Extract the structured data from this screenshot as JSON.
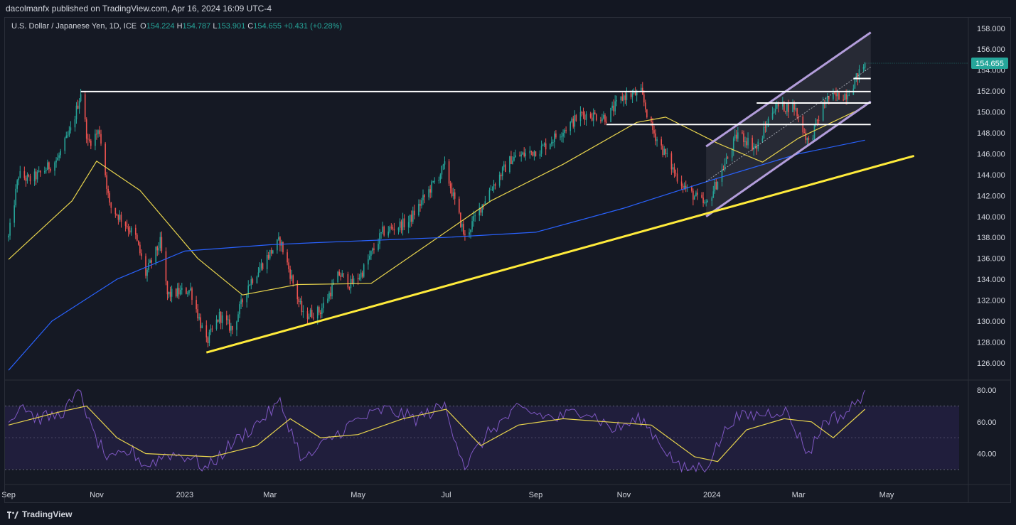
{
  "header": {
    "publisher_text": "dacolmanfx published on TradingView.com, Apr 16, 2024 16:09 UTC-4"
  },
  "legend": {
    "symbol": "U.S. Dollar / Japanese Yen, 1D, ICE",
    "open_label": "O",
    "open": "154.224",
    "high_label": "H",
    "high": "154.787",
    "low_label": "L",
    "low": "153.901",
    "close_label": "C",
    "close": "154.655",
    "change": "+0.431 (+0.28%)"
  },
  "footer": {
    "brand": "TradingView"
  },
  "colors": {
    "up": "#26a69a",
    "down": "#ef5350",
    "ma50": "#e8d44d",
    "ma200": "#2962ff",
    "rsi": "#7e57c2",
    "rsi_ma": "#e8d44d",
    "trendline": "#ffeb3b",
    "channel": "#b39ddb",
    "level": "#ffffff"
  },
  "chart_data": [
    {
      "type": "candlestick",
      "price_axis_ticks": [
        "158.000",
        "156.000",
        "154.000",
        "152.000",
        "150.000",
        "148.000",
        "146.000",
        "144.000",
        "142.000",
        "140.000",
        "138.000",
        "136.000",
        "134.000",
        "132.000",
        "130.000",
        "128.000",
        "126.000"
      ],
      "last_price_label": "154.655",
      "ylim": [
        124.5,
        158.8
      ],
      "time_axis_labels": [
        "Sep",
        "Nov",
        "2023",
        "Mar",
        "May",
        "Jul",
        "Sep",
        "Nov",
        "2024",
        "Mar",
        "May"
      ],
      "price_path": [
        [
          "2022-09-01",
          138.0
        ],
        [
          "2022-09-08",
          144.0
        ],
        [
          "2022-09-15",
          143.5
        ],
        [
          "2022-09-22",
          144.0
        ],
        [
          "2022-10-05",
          145.5
        ],
        [
          "2022-10-15",
          148.5
        ],
        [
          "2022-10-21",
          151.9
        ],
        [
          "2022-10-26",
          147.0
        ],
        [
          "2022-11-03",
          148.2
        ],
        [
          "2022-11-10",
          141.0
        ],
        [
          "2022-11-20",
          139.5
        ],
        [
          "2022-11-28",
          138.0
        ],
        [
          "2022-12-05",
          134.5
        ],
        [
          "2022-12-15",
          137.5
        ],
        [
          "2022-12-20",
          132.5
        ],
        [
          "2023-01-05",
          133.0
        ],
        [
          "2023-01-16",
          127.9
        ],
        [
          "2023-01-25",
          130.5
        ],
        [
          "2023-02-03",
          129.2
        ],
        [
          "2023-02-14",
          133.5
        ],
        [
          "2023-03-01",
          136.5
        ],
        [
          "2023-03-08",
          137.7
        ],
        [
          "2023-03-24",
          130.5
        ],
        [
          "2023-04-05",
          131.0
        ],
        [
          "2023-04-18",
          134.5
        ],
        [
          "2023-04-26",
          133.5
        ],
        [
          "2023-05-03",
          134.5
        ],
        [
          "2023-05-18",
          138.5
        ],
        [
          "2023-06-05",
          139.5
        ],
        [
          "2023-06-30",
          144.8
        ],
        [
          "2023-07-14",
          138.0
        ],
        [
          "2023-07-31",
          142.5
        ],
        [
          "2023-08-15",
          145.5
        ],
        [
          "2023-09-05",
          146.5
        ],
        [
          "2023-10-03",
          149.8
        ],
        [
          "2023-10-20",
          149.5
        ],
        [
          "2023-11-01",
          151.5
        ],
        [
          "2023-11-13",
          151.8
        ],
        [
          "2023-11-20",
          148.5
        ],
        [
          "2023-12-07",
          144.0
        ],
        [
          "2023-12-15",
          142.5
        ],
        [
          "2023-12-28",
          141.0
        ],
        [
          "2024-01-10",
          145.0
        ],
        [
          "2024-01-19",
          148.0
        ],
        [
          "2024-02-01",
          146.5
        ],
        [
          "2024-02-13",
          150.5
        ],
        [
          "2024-02-27",
          150.5
        ],
        [
          "2024-03-08",
          147.0
        ],
        [
          "2024-03-20",
          151.2
        ],
        [
          "2024-04-03",
          151.7
        ],
        [
          "2024-04-10",
          153.2
        ],
        [
          "2024-04-16",
          154.655
        ]
      ],
      "moving_averages": [
        {
          "label": "50-day",
          "color": "#e8d44d",
          "points": [
            [
              "2022-09-01",
              135.9
            ],
            [
              "2022-10-15",
              141.5
            ],
            [
              "2022-11-01",
              145.3
            ],
            [
              "2022-12-01",
              142.5
            ],
            [
              "2023-01-10",
              136.0
            ],
            [
              "2023-02-10",
              132.5
            ],
            [
              "2023-03-20",
              133.5
            ],
            [
              "2023-05-10",
              133.6
            ],
            [
              "2023-06-20",
              137.5
            ],
            [
              "2023-08-01",
              141.5
            ],
            [
              "2023-09-20",
              145.0
            ],
            [
              "2023-11-10",
              149.0
            ],
            [
              "2023-11-30",
              149.5
            ],
            [
              "2024-01-05",
              147.0
            ],
            [
              "2024-02-05",
              145.2
            ],
            [
              "2024-03-01",
              147.5
            ],
            [
              "2024-04-16",
              150.5
            ]
          ]
        },
        {
          "label": "200-day",
          "color": "#2962ff",
          "points": [
            [
              "2022-09-01",
              125.3
            ],
            [
              "2022-10-01",
              130.0
            ],
            [
              "2022-11-15",
              134.0
            ],
            [
              "2023-01-01",
              136.7
            ],
            [
              "2023-03-01",
              137.3
            ],
            [
              "2023-04-01",
              137.5
            ],
            [
              "2023-07-01",
              138.0
            ],
            [
              "2023-09-01",
              138.5
            ],
            [
              "2023-11-01",
              140.8
            ],
            [
              "2024-01-01",
              143.5
            ],
            [
              "2024-03-01",
              146.0
            ],
            [
              "2024-04-16",
              147.3
            ]
          ]
        }
      ],
      "horizontal_levels": [
        {
          "price": 151.95,
          "from": "2022-10-21",
          "to": "2024-04-20"
        },
        {
          "price": 153.2,
          "from": "2024-04-08",
          "to": "2024-04-20"
        },
        {
          "price": 150.85,
          "from": "2024-02-01",
          "to": "2024-04-20"
        },
        {
          "price": 148.8,
          "from": "2023-10-20",
          "to": "2024-04-20"
        }
      ],
      "trendline": {
        "from": [
          "2023-01-16",
          127.0
        ],
        "to": [
          "2024-05-20",
          145.8
        ]
      },
      "channel": {
        "upper": [
          [
            "2023-12-28",
            146.7
          ],
          [
            "2024-04-20",
            157.6
          ]
        ],
        "lower": [
          [
            "2023-12-28",
            140.0
          ],
          [
            "2024-04-20",
            151.0
          ]
        ]
      }
    },
    {
      "type": "line",
      "indicator": "RSI",
      "ticks": [
        "80.00",
        "60.00",
        "40.00"
      ],
      "ylim": [
        25,
        85
      ],
      "band": [
        30,
        70
      ],
      "rsi_path": [
        [
          "2022-09-01",
          60
        ],
        [
          "2022-09-10",
          72
        ],
        [
          "2022-09-20",
          62
        ],
        [
          "2022-10-05",
          64
        ],
        [
          "2022-10-15",
          72
        ],
        [
          "2022-10-21",
          80
        ],
        [
          "2022-10-28",
          55
        ],
        [
          "2022-11-10",
          35
        ],
        [
          "2022-11-25",
          42
        ],
        [
          "2022-12-05",
          32
        ],
        [
          "2022-12-20",
          40
        ],
        [
          "2023-01-05",
          38
        ],
        [
          "2023-01-16",
          30
        ],
        [
          "2023-02-01",
          45
        ],
        [
          "2023-02-15",
          55
        ],
        [
          "2023-03-08",
          72
        ],
        [
          "2023-03-24",
          35
        ],
        [
          "2023-04-10",
          48
        ],
        [
          "2023-04-28",
          60
        ],
        [
          "2023-05-20",
          68
        ],
        [
          "2023-06-10",
          62
        ],
        [
          "2023-06-30",
          70
        ],
        [
          "2023-07-14",
          32
        ],
        [
          "2023-08-01",
          55
        ],
        [
          "2023-08-20",
          68
        ],
        [
          "2023-09-15",
          62
        ],
        [
          "2023-10-05",
          68
        ],
        [
          "2023-10-25",
          55
        ],
        [
          "2023-11-13",
          62
        ],
        [
          "2023-11-28",
          45
        ],
        [
          "2023-12-10",
          30
        ],
        [
          "2023-12-28",
          32
        ],
        [
          "2024-01-15",
          62
        ],
        [
          "2024-02-05",
          65
        ],
        [
          "2024-02-20",
          68
        ],
        [
          "2024-03-08",
          40
        ],
        [
          "2024-03-20",
          62
        ],
        [
          "2024-04-01",
          64
        ],
        [
          "2024-04-10",
          72
        ],
        [
          "2024-04-16",
          80
        ]
      ],
      "rsi_ma_path": [
        [
          "2022-09-01",
          58
        ],
        [
          "2022-10-05",
          66
        ],
        [
          "2022-10-25",
          70
        ],
        [
          "2022-11-15",
          50
        ],
        [
          "2022-12-05",
          40
        ],
        [
          "2023-01-20",
          38
        ],
        [
          "2023-02-20",
          45
        ],
        [
          "2023-03-15",
          62
        ],
        [
          "2023-04-05",
          50
        ],
        [
          "2023-05-01",
          52
        ],
        [
          "2023-06-01",
          62
        ],
        [
          "2023-07-01",
          68
        ],
        [
          "2023-07-25",
          45
        ],
        [
          "2023-08-20",
          58
        ],
        [
          "2023-09-20",
          62
        ],
        [
          "2023-10-20",
          60
        ],
        [
          "2023-11-20",
          58
        ],
        [
          "2023-12-20",
          38
        ],
        [
          "2024-01-05",
          35
        ],
        [
          "2024-01-25",
          55
        ],
        [
          "2024-02-20",
          62
        ],
        [
          "2024-03-10",
          60
        ],
        [
          "2024-03-25",
          50
        ],
        [
          "2024-04-16",
          68
        ]
      ]
    }
  ]
}
